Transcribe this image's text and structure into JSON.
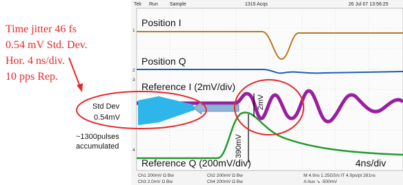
{
  "header": {
    "brand": "Tek",
    "mode": "Run",
    "acq": "Sample",
    "count": "1315 Acqs",
    "date": "26 Jul 07 13:56:25"
  },
  "notes": [
    "Time jitter 46 fs",
    "0.54 mV Std. Dev.",
    "Hor. 4 ns/div.",
    "10  pps Rep."
  ],
  "traces": {
    "position_i": "Position I",
    "position_q": "Position Q",
    "reference_i": "Reference I (2mV/div)",
    "reference_q": "Reference Q (200mV/div)",
    "timebase": "4ns/div"
  },
  "histogram": {
    "line1": "Std Dev",
    "line2": "0.54mV",
    "pulses1": "~1300pulses",
    "pulses2": "accumulated"
  },
  "markers": {
    "amp_small": "2mV",
    "amp_large": "390mV",
    "ch": [
      "1",
      "2",
      "3",
      "4"
    ]
  },
  "status": {
    "ch1": "Ch1  200mV  Ω  Bw",
    "ch2": "Ch2  200mV  Ω  Bw",
    "horiz": "M 4.0ns 1.25GS/s    IT 4.0ps/pt  281ns",
    "ch3": "Ch3  2.0mV  Ω  Bw",
    "ch4": "Ch4  200mV  Ω  Bw",
    "trig": "A  Aux  ↘  -500mV"
  }
}
